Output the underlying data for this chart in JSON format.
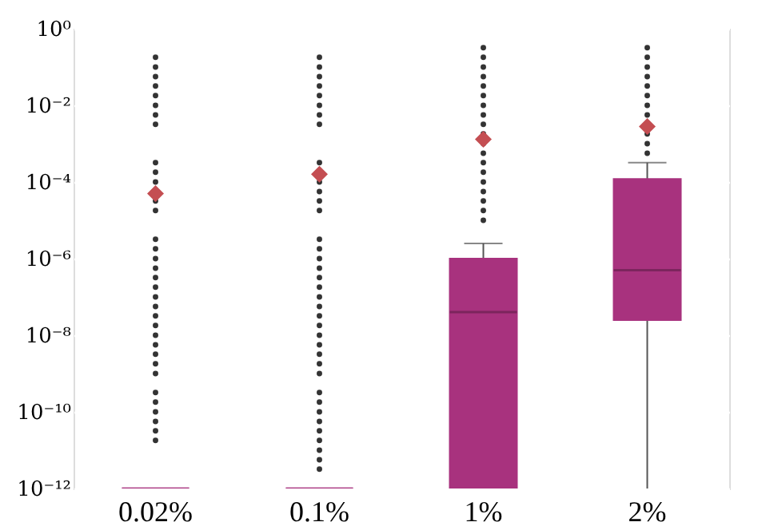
{
  "chart_data": {
    "type": "box",
    "categories": [
      "0.02%",
      "0.1%",
      "1%",
      "2%"
    ],
    "log": "y",
    "grid": "y",
    "ylim": [
      1e-12,
      1
    ],
    "yticks": [
      {
        "value": 1,
        "label": "10⁰"
      },
      {
        "value": 0.01,
        "label": "10⁻²"
      },
      {
        "value": 0.0001,
        "label": "10⁻⁴"
      },
      {
        "value": 1e-06,
        "label": "10⁻⁶"
      },
      {
        "value": 1e-08,
        "label": "10⁻⁸"
      },
      {
        "value": 1e-10,
        "label": "10⁻¹⁰"
      },
      {
        "value": 1e-12,
        "label": "10⁻¹²"
      }
    ],
    "series": [
      {
        "color": "#a8327e",
        "boxes": [
          {
            "low": 1e-12,
            "q1": 1e-12,
            "median": 1e-12,
            "q3": 1e-12,
            "high": 1e-12,
            "mean": 5e-05,
            "outliers": [
              0.18,
              0.1,
              0.056,
              0.032,
              0.018,
              0.01,
              0.0056,
              0.0032,
              0.00032,
              0.00018,
              0.0001,
              3.2e-05,
              1.8e-05,
              3.2e-06,
              1.8e-06,
              1e-06,
              5.6e-07,
              3.2e-07,
              1.8e-07,
              1e-07,
              5.6e-08,
              3.2e-08,
              1.8e-08,
              1e-08,
              5.6e-09,
              3.2e-09,
              1.8e-09,
              1e-09,
              3.2e-10,
              1.8e-10,
              1e-10,
              5.6e-11,
              3.2e-11,
              1.8e-11
            ]
          },
          {
            "low": 1e-12,
            "q1": 1e-12,
            "median": 1e-12,
            "q3": 1e-12,
            "high": 1e-12,
            "mean": 0.00016,
            "outliers": [
              0.18,
              0.1,
              0.056,
              0.032,
              0.018,
              0.01,
              0.0056,
              0.0032,
              0.00032,
              0.0001,
              5.6e-05,
              3.2e-05,
              1.8e-05,
              3.2e-06,
              1.8e-06,
              1e-06,
              5.6e-07,
              3.2e-07,
              1.8e-07,
              1e-07,
              5.6e-08,
              3.2e-08,
              1.8e-08,
              1e-08,
              5.6e-09,
              3.2e-09,
              1.8e-09,
              1e-09,
              3.2e-10,
              1.8e-10,
              1e-10,
              5.6e-11,
              3.2e-11,
              1.8e-11,
              1e-11,
              5.6e-12,
              3.2e-12
            ]
          },
          {
            "low": 1e-12,
            "q1": 1e-12,
            "median": 4e-08,
            "q3": 1e-06,
            "high": 2.5e-06,
            "mean": 0.0013,
            "outliers": [
              0.32,
              0.18,
              0.1,
              0.056,
              0.032,
              0.018,
              0.01,
              0.0056,
              0.0032,
              0.0018,
              0.001,
              0.00056,
              0.00032,
              0.00018,
              0.0001,
              5.6e-05,
              3.2e-05,
              1.8e-05,
              1e-05
            ]
          },
          {
            "low": 1e-12,
            "q1": 2.5e-08,
            "median": 5e-07,
            "q3": 0.00012,
            "high": 0.00032,
            "mean": 0.0028,
            "outliers": [
              0.32,
              0.18,
              0.1,
              0.056,
              0.032,
              0.018,
              0.01,
              0.0056,
              0.0018,
              0.001,
              0.00056
            ]
          }
        ]
      }
    ]
  }
}
